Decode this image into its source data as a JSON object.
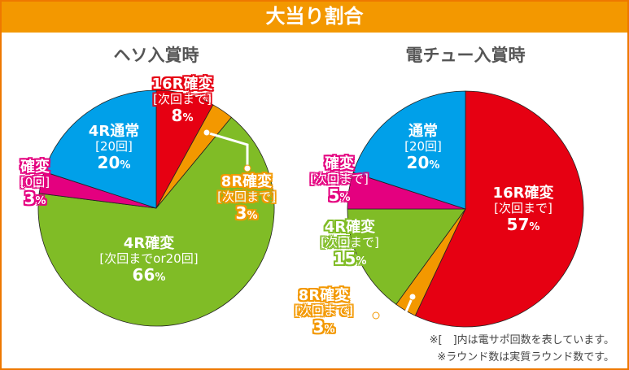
{
  "header": {
    "title": "大当り割合"
  },
  "colors": {
    "red": "#e60012",
    "orange": "#f39800",
    "green": "#80bc26",
    "magenta": "#e4007f",
    "blue": "#00a0e9"
  },
  "notes": [
    "※[　]内は電サポ回数を表しています。",
    "※ラウンド数は実質ラウンド数です。"
  ],
  "chart_data": [
    {
      "type": "pie",
      "title": "ヘソ入賞時",
      "start": "top",
      "direction": "clockwise",
      "slices": [
        {
          "name": "16R確変",
          "sub": "[次回まで]",
          "value": 8,
          "label": "8",
          "color": "#e60012"
        },
        {
          "name": "8R確変",
          "sub": "[次回まで]",
          "value": 3,
          "label": "3",
          "color": "#f39800"
        },
        {
          "name": "4R確変",
          "sub": "[次回までor20回]",
          "value": 66,
          "label": "66",
          "color": "#80bc26"
        },
        {
          "name": "確変",
          "sub": "[0回]",
          "value": 3,
          "label": "3",
          "color": "#e4007f"
        },
        {
          "name": "4R通常",
          "sub": "[20回]",
          "value": 20,
          "label": "20",
          "color": "#00a0e9"
        }
      ]
    },
    {
      "type": "pie",
      "title": "電チュー入賞時",
      "start": "top",
      "direction": "clockwise",
      "slices": [
        {
          "name": "16R確変",
          "sub": "[次回まで]",
          "value": 57,
          "label": "57",
          "color": "#e60012"
        },
        {
          "name": "8R確変",
          "sub": "[次回まで]",
          "value": 3,
          "label": "3",
          "color": "#f39800"
        },
        {
          "name": "4R確変",
          "sub": "[次回まで]",
          "value": 15,
          "label": "15",
          "color": "#80bc26"
        },
        {
          "name": "確変",
          "sub": "[次回まで]",
          "value": 5,
          "label": "5",
          "color": "#e4007f"
        },
        {
          "name": "通常",
          "sub": "[20回]",
          "value": 20,
          "label": "20",
          "color": "#00a0e9"
        }
      ]
    }
  ],
  "unit": "%"
}
